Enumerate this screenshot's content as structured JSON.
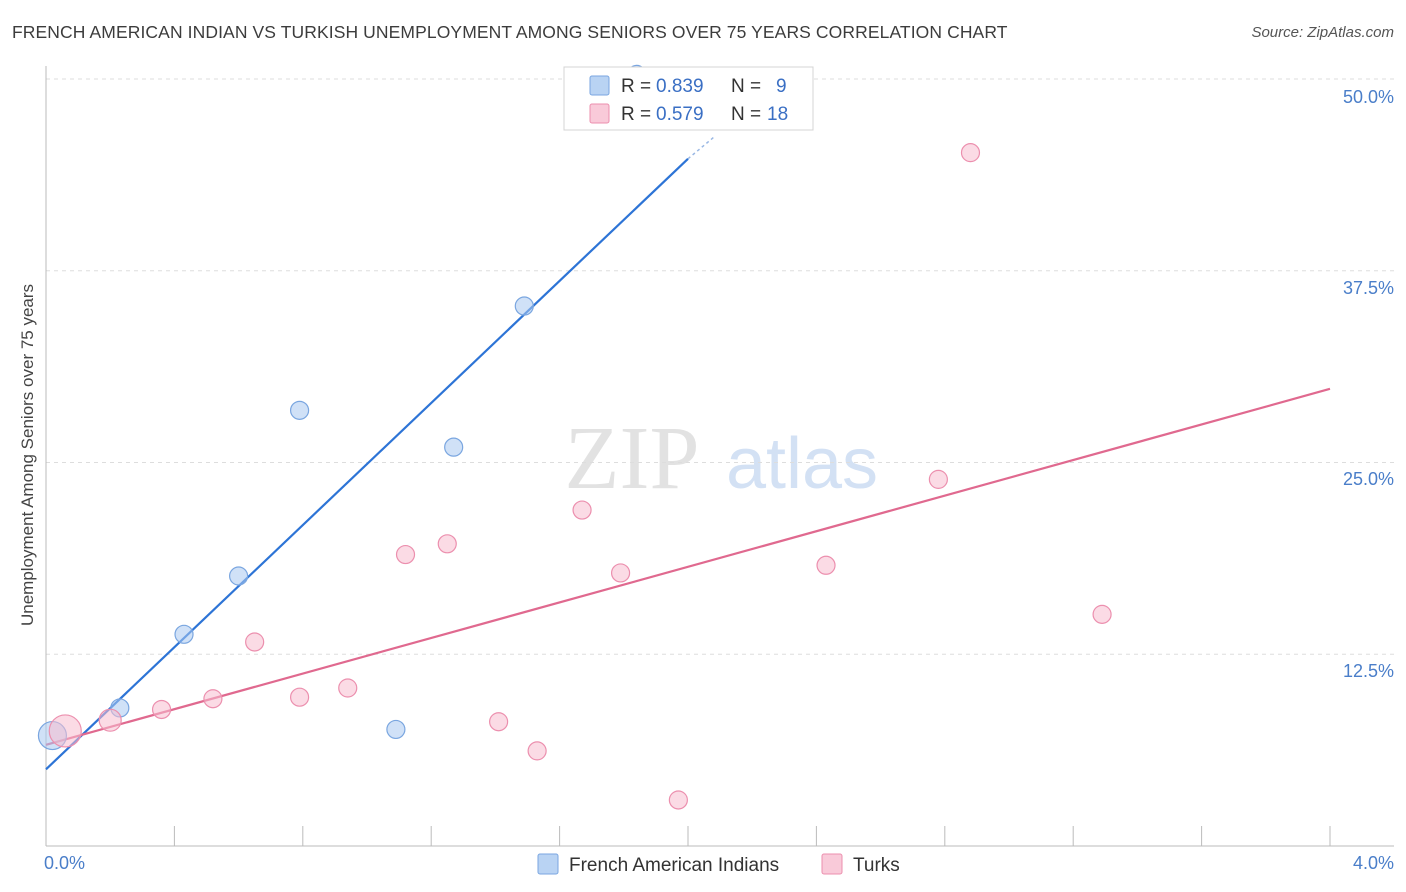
{
  "header": {
    "title": "FRENCH AMERICAN INDIAN VS TURKISH UNEMPLOYMENT AMONG SENIORS OVER 75 YEARS CORRELATION CHART",
    "source": "Source: ZipAtlas.com"
  },
  "watermark": {
    "zip": "ZIP",
    "atlas": "atlas"
  },
  "legend": {
    "r_label": "R =",
    "n_label": "N =",
    "series": [
      {
        "name": "French American Indians",
        "r": "0.839",
        "n": "9",
        "color": "#a9c8f0",
        "stroke": "#7aa6e0"
      },
      {
        "name": "Turks",
        "r": "0.579",
        "n": "18",
        "color": "#f7bdd0",
        "stroke": "#ec8fae"
      }
    ]
  },
  "chart_data": {
    "type": "scatter",
    "title": "FRENCH AMERICAN INDIAN VS TURKISH UNEMPLOYMENT AMONG SENIORS OVER 75 YEARS CORRELATION CHART",
    "xlabel": "",
    "ylabel": "Unemployment Among Seniors over 75 years",
    "xlim": [
      0,
      4.0
    ],
    "ylim": [
      0,
      50
    ],
    "x_tick_labels": [
      "0.0%",
      "4.0%"
    ],
    "y_ticks": [
      12.5,
      25.0,
      37.5,
      50.0
    ],
    "y_tick_labels": [
      "12.5%",
      "25.0%",
      "37.5%",
      "50.0%"
    ],
    "series": [
      {
        "name": "French American Indians",
        "color": "#a9c8f0",
        "line_color": "#2d74d6",
        "points": [
          {
            "x": 0.02,
            "y": 7.2,
            "size": 14
          },
          {
            "x": 0.23,
            "y": 9.0,
            "size": 9
          },
          {
            "x": 0.43,
            "y": 13.8,
            "size": 9
          },
          {
            "x": 0.6,
            "y": 17.6,
            "size": 9
          },
          {
            "x": 0.79,
            "y": 28.4,
            "size": 9
          },
          {
            "x": 1.09,
            "y": 7.6,
            "size": 9
          },
          {
            "x": 1.27,
            "y": 26.0,
            "size": 9
          },
          {
            "x": 1.49,
            "y": 35.2,
            "size": 9
          },
          {
            "x": 1.84,
            "y": 50.3,
            "size": 9
          }
        ],
        "trend": {
          "x0": 0.0,
          "y0": 5.0,
          "x1": 2.0,
          "y1": 44.8,
          "dash_to_x": 2.08,
          "dash_to_y": 46.2
        }
      },
      {
        "name": "Turks",
        "color": "#f7bdd0",
        "line_color": "#e0698f",
        "points": [
          {
            "x": 0.06,
            "y": 7.5,
            "size": 16
          },
          {
            "x": 0.2,
            "y": 8.2,
            "size": 11
          },
          {
            "x": 0.36,
            "y": 8.9,
            "size": 9
          },
          {
            "x": 0.52,
            "y": 9.6,
            "size": 9
          },
          {
            "x": 0.65,
            "y": 13.3,
            "size": 9
          },
          {
            "x": 0.79,
            "y": 9.7,
            "size": 9
          },
          {
            "x": 0.94,
            "y": 10.3,
            "size": 9
          },
          {
            "x": 1.12,
            "y": 19.0,
            "size": 9
          },
          {
            "x": 1.25,
            "y": 19.7,
            "size": 9
          },
          {
            "x": 1.41,
            "y": 8.1,
            "size": 9
          },
          {
            "x": 1.53,
            "y": 6.2,
            "size": 9
          },
          {
            "x": 1.67,
            "y": 21.9,
            "size": 9
          },
          {
            "x": 1.79,
            "y": 17.8,
            "size": 9
          },
          {
            "x": 1.97,
            "y": 3.0,
            "size": 9
          },
          {
            "x": 2.43,
            "y": 18.3,
            "size": 9
          },
          {
            "x": 2.78,
            "y": 23.9,
            "size": 9
          },
          {
            "x": 2.88,
            "y": 45.2,
            "size": 9
          },
          {
            "x": 3.29,
            "y": 15.1,
            "size": 9
          }
        ],
        "trend": {
          "x0": 0.0,
          "y0": 6.6,
          "x1": 4.0,
          "y1": 29.8
        }
      }
    ]
  }
}
